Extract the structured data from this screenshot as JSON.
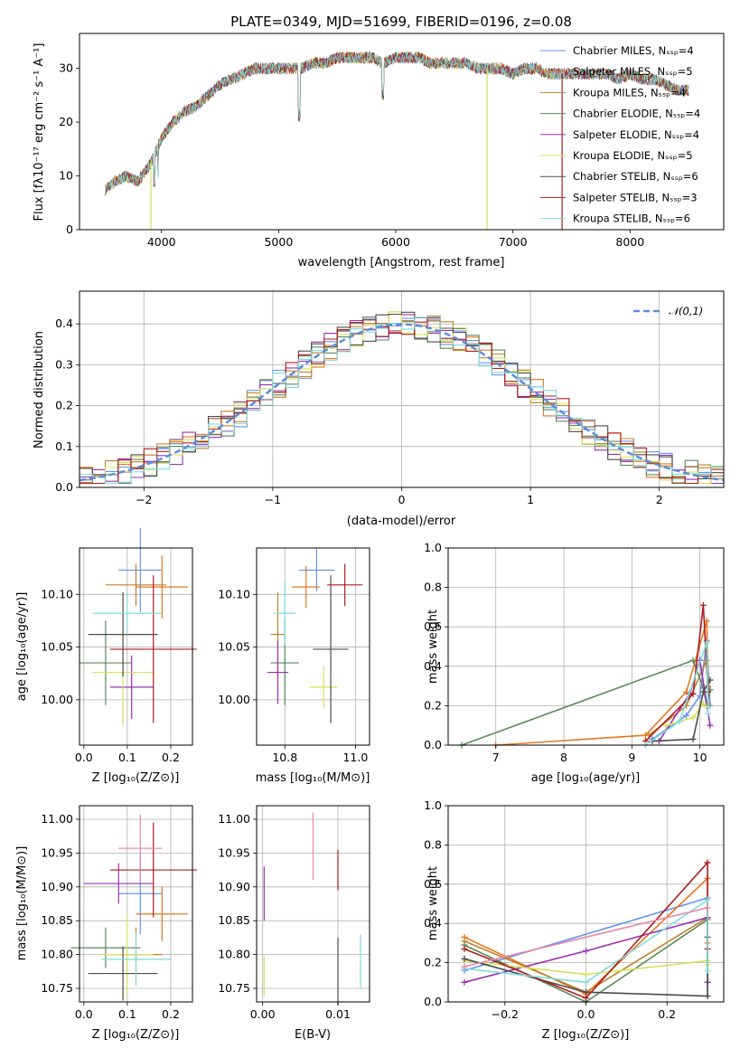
{
  "colors": [
    "#6495ed",
    "#e8771e",
    "#c0812c",
    "#5b8a5b",
    "#9b30b0",
    "#d8e05a",
    "#4d4d4d",
    "#b01c1c",
    "#80dcdc",
    "#e888a8"
  ],
  "chart_data": [
    {
      "id": "spectrum",
      "type": "line",
      "title": "PLATE=0349, MJD=51699, FIBERID=0196, z=0.08",
      "xlabel": "wavelength [Angstrom, rest frame]",
      "ylabel": "Flux [fλ10⁻¹⁷ erg cm⁻² s⁻¹ A⁻¹]",
      "xlim": [
        3300,
        8800
      ],
      "ylim": [
        0,
        36.5
      ],
      "xticks": [
        "4000",
        "5000",
        "6000",
        "7000",
        "8000"
      ],
      "yticks": [
        "0",
        "10",
        "20",
        "30"
      ],
      "legend": "top-right",
      "series": [
        {
          "name": "Chabrier MILES, N_SSP=4"
        },
        {
          "name": "Salpeter MILES, N_SSP=5"
        },
        {
          "name": "Kroupa MILES, N_SSP=4"
        },
        {
          "name": "Chabrier ELODIE, N_SSP=4"
        },
        {
          "name": "Salpeter ELODIE, N_SSP=4"
        },
        {
          "name": "Kroupa ELODIE, N_SSP=5"
        },
        {
          "name": "Chabrier STELIB, N_SSP=6"
        },
        {
          "name": "Salpeter STELIB, N_SSP=3"
        },
        {
          "name": "Kroupa STELIB, N_SSP=6"
        }
      ],
      "continuum": [
        [
          3500,
          7
        ],
        [
          3600,
          9
        ],
        [
          3700,
          10
        ],
        [
          3800,
          9
        ],
        [
          3900,
          12
        ],
        [
          4000,
          17
        ],
        [
          4100,
          20
        ],
        [
          4200,
          22
        ],
        [
          4300,
          23
        ],
        [
          4400,
          25
        ],
        [
          4500,
          27
        ],
        [
          4600,
          28
        ],
        [
          4700,
          29
        ],
        [
          4800,
          30
        ],
        [
          4900,
          30
        ],
        [
          5000,
          30
        ],
        [
          5100,
          30
        ],
        [
          5200,
          30
        ],
        [
          5300,
          31
        ],
        [
          5400,
          31
        ],
        [
          5500,
          32
        ],
        [
          5600,
          32
        ],
        [
          5700,
          32
        ],
        [
          5800,
          32
        ],
        [
          5900,
          31
        ],
        [
          6000,
          32
        ],
        [
          6100,
          32
        ],
        [
          6200,
          32
        ],
        [
          6300,
          31
        ],
        [
          6400,
          31
        ],
        [
          6500,
          31
        ],
        [
          6600,
          31
        ],
        [
          6700,
          30
        ],
        [
          6800,
          30
        ],
        [
          6900,
          30
        ],
        [
          7000,
          29
        ],
        [
          7100,
          30
        ],
        [
          7200,
          30
        ],
        [
          7300,
          29
        ],
        [
          7400,
          29
        ],
        [
          7500,
          29
        ],
        [
          7600,
          29
        ],
        [
          7700,
          29
        ],
        [
          7800,
          29
        ],
        [
          7900,
          28
        ],
        [
          8000,
          29
        ],
        [
          8100,
          28
        ],
        [
          8200,
          28
        ],
        [
          8300,
          27
        ],
        [
          8400,
          26
        ],
        [
          8500,
          26
        ]
      ]
    },
    {
      "id": "residuals",
      "type": "step",
      "xlabel": "(data-model)/error",
      "ylabel": "Normed distribution",
      "xlim": [
        -2.5,
        2.5
      ],
      "ylim": [
        0,
        0.48
      ],
      "xticks": [
        "−2",
        "−1",
        "0",
        "1",
        "2"
      ],
      "yticks": [
        "0.0",
        "0.1",
        "0.2",
        "0.3",
        "0.4"
      ],
      "legend": "top-right",
      "reference": {
        "name": "𝒩(0,1)",
        "mean": 0,
        "sigma": 1
      }
    },
    {
      "id": "age-vs-Z",
      "type": "errorbar",
      "xlabel": "Z [log₁₀(Z/Z⊙)]",
      "ylabel": "age  [log₁₀(age/yr)]",
      "xlim": [
        -0.01,
        0.25
      ],
      "ylim": [
        9.957,
        10.144
      ],
      "xticks": [
        "0.0",
        "0.1",
        "0.2"
      ],
      "yticks": [
        "10.00",
        "10.05",
        "10.10"
      ],
      "points": [
        {
          "x": 0.13,
          "xerr": 0.05,
          "y": 10.123,
          "yerr": 0.04
        },
        {
          "x": 0.18,
          "xerr": 0.06,
          "y": 10.107,
          "yerr": 0.03
        },
        {
          "x": 0.12,
          "xerr": 0.07,
          "y": 10.109,
          "yerr": 0.02
        },
        {
          "x": 0.05,
          "xerr": 0.06,
          "y": 10.035,
          "yerr": 0.04
        },
        {
          "x": 0.11,
          "xerr": 0.05,
          "y": 10.012,
          "yerr": 0.03
        },
        {
          "x": 0.09,
          "xerr": 0.07,
          "y": 10.026,
          "yerr": 0.05
        },
        {
          "x": 0.09,
          "xerr": 0.08,
          "y": 10.062,
          "yerr": 0.04
        },
        {
          "x": 0.16,
          "xerr": 0.1,
          "y": 10.048,
          "yerr": 0.07
        },
        {
          "x": 0.1,
          "xerr": 0.08,
          "y": 10.082,
          "yerr": 0.02
        }
      ]
    },
    {
      "id": "age-vs-mass",
      "type": "errorbar",
      "xlabel": "mass [log₁₀(M/M⊙)]",
      "xlim": [
        10.72,
        11.04
      ],
      "ylim": [
        9.957,
        10.144
      ],
      "xticks": [
        "10.8",
        "11.0"
      ],
      "yticks": [
        "10.00",
        "10.05",
        "10.10"
      ],
      "points": [
        {
          "x": 10.89,
          "xerr": 0.05,
          "y": 10.123,
          "yerr": 0.02
        },
        {
          "x": 10.86,
          "xerr": 0.04,
          "y": 10.107,
          "yerr": 0.02
        },
        {
          "x": 10.78,
          "xerr": 0.02,
          "y": 10.062,
          "yerr": 0.04
        },
        {
          "x": 10.8,
          "xerr": 0.04,
          "y": 10.035,
          "yerr": 0.04
        },
        {
          "x": 10.78,
          "xerr": 0.03,
          "y": 10.026,
          "yerr": 0.03
        },
        {
          "x": 10.91,
          "xerr": 0.04,
          "y": 10.012,
          "yerr": 0.02
        },
        {
          "x": 10.93,
          "xerr": 0.05,
          "y": 10.048,
          "yerr": 0.07
        },
        {
          "x": 10.97,
          "xerr": 0.05,
          "y": 10.109,
          "yerr": 0.02
        },
        {
          "x": 10.8,
          "xerr": 0.03,
          "y": 10.082,
          "yerr": 0.03
        }
      ]
    },
    {
      "id": "weight-vs-age",
      "type": "line",
      "xlabel": "age  [log₁₀(age/yr)]",
      "ylabel": "mass weight",
      "xlim": [
        6.3,
        10.35
      ],
      "ylim": [
        0,
        1.0
      ],
      "xticks": [
        "7",
        "8",
        "9",
        "10"
      ],
      "yticks": [
        "0.0",
        "0.2",
        "0.4",
        "0.6",
        "0.8",
        "1.0"
      ],
      "lines": [
        [
          [
            9.3,
            0.03
          ],
          [
            9.8,
            0.15
          ],
          [
            10.0,
            0.25
          ],
          [
            10.1,
            0.53
          ],
          [
            10.15,
            0.2
          ]
        ],
        [
          [
            7.0,
            0.0
          ],
          [
            9.2,
            0.05
          ],
          [
            9.8,
            0.27
          ],
          [
            10.1,
            0.63
          ],
          [
            10.12,
            0.3
          ]
        ],
        [
          [
            9.25,
            0.05
          ],
          [
            9.8,
            0.2
          ],
          [
            10.1,
            0.43
          ],
          [
            10.12,
            0.21
          ]
        ],
        [
          [
            6.5,
            0.0
          ],
          [
            9.9,
            0.43
          ],
          [
            10.05,
            0.29
          ],
          [
            10.1,
            0.2
          ],
          [
            10.15,
            0.28
          ]
        ],
        [
          [
            9.4,
            0.02
          ],
          [
            9.85,
            0.26
          ],
          [
            10.0,
            0.43
          ],
          [
            10.15,
            0.1
          ]
        ],
        [
          [
            9.5,
            0.1
          ],
          [
            9.9,
            0.14
          ],
          [
            10.05,
            0.21
          ],
          [
            10.12,
            0.19
          ]
        ],
        [
          [
            9.3,
            0.02
          ],
          [
            9.9,
            0.03
          ],
          [
            10.05,
            0.27
          ],
          [
            10.15,
            0.33
          ]
        ],
        [
          [
            9.2,
            0.02
          ],
          [
            9.9,
            0.26
          ],
          [
            10.05,
            0.71
          ],
          [
            10.12,
            0.27
          ]
        ],
        [
          [
            9.2,
            0.0
          ],
          [
            9.7,
            0.12
          ],
          [
            10.1,
            0.52
          ],
          [
            10.12,
            0.16
          ]
        ]
      ]
    },
    {
      "id": "mass-vs-Z",
      "type": "errorbar",
      "xlabel": "Z [log₁₀(Z/Z⊙)]",
      "ylabel": "mass [log₁₀(M/M⊙)]",
      "xlim": [
        -0.01,
        0.25
      ],
      "ylim": [
        10.73,
        11.02
      ],
      "xticks": [
        "0.0",
        "0.1",
        "0.2"
      ],
      "yticks": [
        "10.75",
        "10.80",
        "10.85",
        "10.90",
        "10.95",
        "11.00"
      ],
      "points": [
        {
          "x": 0.13,
          "xerr": 0.05,
          "y": 10.89,
          "yerr": 0.06
        },
        {
          "x": 0.18,
          "xerr": 0.06,
          "y": 10.86,
          "yerr": 0.04
        },
        {
          "x": 0.12,
          "xerr": 0.06,
          "y": 10.8,
          "yerr": 0.04
        },
        {
          "x": 0.05,
          "xerr": 0.08,
          "y": 10.81,
          "yerr": 0.03
        },
        {
          "x": 0.08,
          "xerr": 0.08,
          "y": 10.905,
          "yerr": 0.03
        },
        {
          "x": 0.1,
          "xerr": 0.06,
          "y": 10.8,
          "yerr": 0.06
        },
        {
          "x": 0.09,
          "xerr": 0.08,
          "y": 10.772,
          "yerr": 0.04
        },
        {
          "x": 0.16,
          "xerr": 0.1,
          "y": 10.925,
          "yerr": 0.07
        },
        {
          "x": 0.12,
          "xerr": 0.08,
          "y": 10.793,
          "yerr": 0.04
        },
        {
          "x": 0.13,
          "xerr": 0.05,
          "y": 10.957,
          "yerr": 0.05
        }
      ]
    },
    {
      "id": "mass-vs-EBV",
      "type": "errorbar",
      "xlabel": "E(B-V)",
      "xlim": [
        -0.0008,
        0.0142
      ],
      "ylim": [
        10.73,
        11.02
      ],
      "xticks": [
        "0.00",
        "0.01"
      ],
      "yticks": [
        "10.75",
        "10.80",
        "10.85",
        "10.90",
        "10.95",
        "11.00"
      ],
      "points": [
        {
          "x": 0.0002,
          "xerr": 0,
          "y": 10.89,
          "yerr": 0.04
        },
        {
          "x": 0.0002,
          "xerr": 0,
          "y": 10.77,
          "yerr": 0.03
        },
        {
          "x": 0.0067,
          "xerr": 0,
          "y": 10.96,
          "yerr": 0.05
        },
        {
          "x": 0.01,
          "xerr": 0,
          "y": 10.925,
          "yerr": 0.03
        },
        {
          "x": 0.01,
          "xerr": 0,
          "y": 10.775,
          "yerr": 0.05
        },
        {
          "x": 0.013,
          "xerr": 0,
          "y": 10.79,
          "yerr": 0.04
        }
      ],
      "pointColors": [
        4,
        5,
        9,
        7,
        6,
        8
      ]
    },
    {
      "id": "weight-vs-Z",
      "type": "line",
      "xlabel": "Z [log₁₀(Z/Z⊙)]",
      "ylabel": "mass weight",
      "xlim": [
        -0.34,
        0.34
      ],
      "ylim": [
        0,
        1.0
      ],
      "xticks": [
        "−0.2",
        "0.0",
        "0.2"
      ],
      "yticks": [
        "0.0",
        "0.2",
        "0.4",
        "0.6",
        "0.8",
        "1.0"
      ],
      "lines": [
        [
          [
            -0.3,
            0.16
          ],
          [
            0.3,
            0.53
          ],
          [
            0.3,
            0.03
          ]
        ],
        [
          [
            -0.3,
            0.33
          ],
          [
            0.0,
            0.04
          ],
          [
            0.3,
            0.63
          ],
          [
            0.3,
            0.3
          ]
        ],
        [
          [
            -0.3,
            0.31
          ],
          [
            0.0,
            0.05
          ],
          [
            0.3,
            0.43
          ],
          [
            0.3,
            0.21
          ]
        ],
        [
          [
            -0.3,
            0.29
          ],
          [
            0.0,
            0.0
          ],
          [
            0.3,
            0.42
          ],
          [
            0.3,
            0.27
          ]
        ],
        [
          [
            -0.3,
            0.1
          ],
          [
            0.0,
            0.26
          ],
          [
            0.3,
            0.43
          ],
          [
            0.3,
            0.1
          ]
        ],
        [
          [
            -0.3,
            0.21
          ],
          [
            0.0,
            0.14
          ],
          [
            0.3,
            0.21
          ],
          [
            0.3,
            0.19
          ]
        ],
        [
          [
            -0.3,
            0.22
          ],
          [
            0.0,
            0.05
          ],
          [
            0.3,
            0.03
          ],
          [
            0.3,
            0.33
          ]
        ],
        [
          [
            -0.3,
            0.27
          ],
          [
            0.0,
            0.02
          ],
          [
            0.3,
            0.71
          ],
          [
            0.3,
            0.27
          ]
        ],
        [
          [
            -0.3,
            0.17
          ],
          [
            0.0,
            0.1
          ],
          [
            0.3,
            0.52
          ],
          [
            0.3,
            0.16
          ]
        ],
        [
          [
            -0.3,
            0.18
          ],
          [
            0.3,
            0.48
          ]
        ]
      ]
    }
  ]
}
